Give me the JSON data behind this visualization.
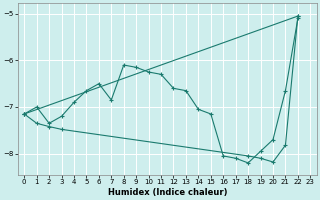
{
  "xlabel": "Humidex (Indice chaleur)",
  "bg_color": "#ceeeed",
  "grid_color": "#ffffff",
  "line_color": "#1a7a6e",
  "xlim": [
    -0.5,
    23.5
  ],
  "ylim": [
    -8.45,
    -4.78
  ],
  "yticks": [
    -8,
    -7,
    -6,
    -5
  ],
  "xticks": [
    0,
    1,
    2,
    3,
    4,
    5,
    6,
    7,
    8,
    9,
    10,
    11,
    12,
    13,
    14,
    15,
    16,
    17,
    18,
    19,
    20,
    21,
    22,
    23
  ],
  "line1_x": [
    0,
    1,
    2,
    3,
    4,
    5,
    6,
    7,
    8,
    9,
    10,
    11,
    12,
    13,
    14,
    15,
    16,
    17,
    18,
    19,
    20,
    21,
    22
  ],
  "line1_y": [
    -7.15,
    -7.0,
    -7.35,
    -7.2,
    -6.9,
    -6.65,
    -6.5,
    -6.85,
    -6.1,
    -6.15,
    -6.25,
    -6.3,
    -6.6,
    -6.65,
    -7.05,
    -7.15,
    -8.05,
    -8.1,
    -8.2,
    -7.95,
    -7.7,
    -6.65,
    -5.1
  ],
  "line2_x": [
    0,
    22
  ],
  "line2_y": [
    -7.15,
    -5.05
  ],
  "line3_x": [
    0,
    1,
    2,
    3,
    18,
    19,
    20,
    21,
    22
  ],
  "line3_y": [
    -7.15,
    -7.35,
    -7.42,
    -7.48,
    -8.05,
    -8.1,
    -8.18,
    -7.82,
    -5.05
  ]
}
